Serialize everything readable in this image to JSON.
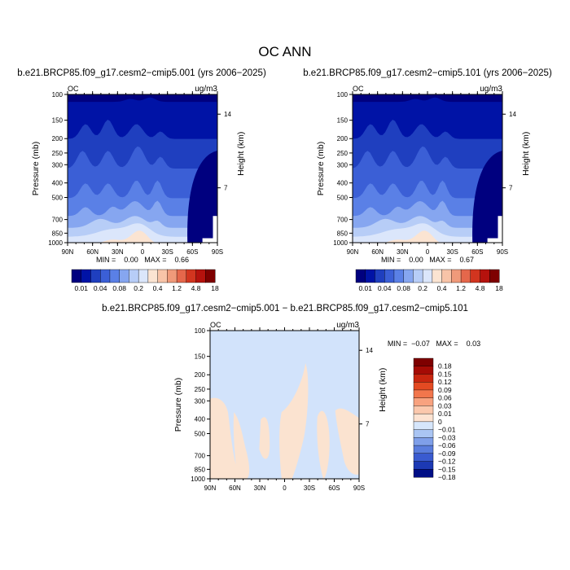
{
  "title": "OC ANN",
  "chart_data": [
    {
      "type": "heatmap",
      "title": "b.e21.BRCP85.f09_g17.cesm2−cmip5.001 (yrs 2006−2025)",
      "corner_left": "OC",
      "corner_right": "ug/m3",
      "xlabel": "",
      "ylabel": "Pressure (mb)",
      "y2label": "Height (km)",
      "x_ticks": [
        "90N",
        "60N",
        "30N",
        "0",
        "30S",
        "60S",
        "90S"
      ],
      "y_ticks": [
        "100",
        "150",
        "200",
        "250",
        "300",
        "400",
        "500",
        "700",
        "850",
        "1000"
      ],
      "y2_ticks": [
        "14",
        "7"
      ],
      "stats": "MIN =    0.00   MAX =    0.66",
      "min": 0.0,
      "max": 0.66,
      "colorbar_labels": [
        "0.01",
        "0.04",
        "0.08",
        "0.2",
        "0.4",
        "1.2",
        "4.8",
        "18"
      ]
    },
    {
      "type": "heatmap",
      "title": "b.e21.BRCP85.f09_g17.cesm2−cmip5.101 (yrs 2006−2025)",
      "corner_left": "OC",
      "corner_right": "ug/m3",
      "xlabel": "",
      "ylabel": "Pressure (mb)",
      "y2label": "Height (km)",
      "x_ticks": [
        "90N",
        "60N",
        "30N",
        "0",
        "30S",
        "60S",
        "90S"
      ],
      "y_ticks": [
        "100",
        "150",
        "200",
        "250",
        "300",
        "400",
        "500",
        "700",
        "850",
        "1000"
      ],
      "y2_ticks": [
        "14",
        "7"
      ],
      "stats": "MIN =    0.00   MAX =    0.67",
      "min": 0.0,
      "max": 0.67,
      "colorbar_labels": [
        "0.01",
        "0.04",
        "0.08",
        "0.2",
        "0.4",
        "1.2",
        "4.8",
        "18"
      ]
    },
    {
      "type": "heatmap",
      "title": "b.e21.BRCP85.f09_g17.cesm2−cmip5.001  −  b.e21.BRCP85.f09_g17.cesm2−cmip5.101",
      "corner_left": "OC",
      "corner_right": "ug/m3",
      "xlabel": "",
      "ylabel": "Pressure (mb)",
      "y2label": "Height (km)",
      "x_ticks": [
        "90N",
        "60N",
        "30N",
        "0",
        "30S",
        "60S",
        "90S"
      ],
      "y_ticks": [
        "100",
        "150",
        "200",
        "250",
        "300",
        "400",
        "500",
        "700",
        "850",
        "1000"
      ],
      "y2_ticks": [
        "14",
        "7"
      ],
      "stats": "MIN =  −0.07   MAX =    0.03",
      "min": -0.07,
      "max": 0.03,
      "colorbar_labels": [
        "0.18",
        "0.15",
        "0.12",
        "0.09",
        "0.06",
        "0.03",
        "0.01",
        "0",
        "−0.01",
        "−0.03",
        "−0.06",
        "−0.09",
        "−0.12",
        "−0.15",
        "−0.18"
      ]
    }
  ],
  "colors": {
    "seq": [
      "#00007f",
      "#0013a6",
      "#1f3fbf",
      "#3b5fd6",
      "#5a80e6",
      "#86a6f0",
      "#b7cdf7",
      "#dbe6fb",
      "#fbe4d2",
      "#f8c4a8",
      "#f09a7a",
      "#e5674b",
      "#d2351f",
      "#b5120d",
      "#7e0000"
    ],
    "diff": [
      "#7e0000",
      "#a50b05",
      "#c8260f",
      "#e34a22",
      "#f2764c",
      "#f8a27f",
      "#fbc8ad",
      "#fde3d2",
      "#d6e6fb",
      "#aac5f3",
      "#7f9fe9",
      "#5a7ddd",
      "#3a5bd0",
      "#1c39b4",
      "#000e86"
    ],
    "diff_fill": "#d2e3fb",
    "diff_pos": "#fbe3d0"
  }
}
